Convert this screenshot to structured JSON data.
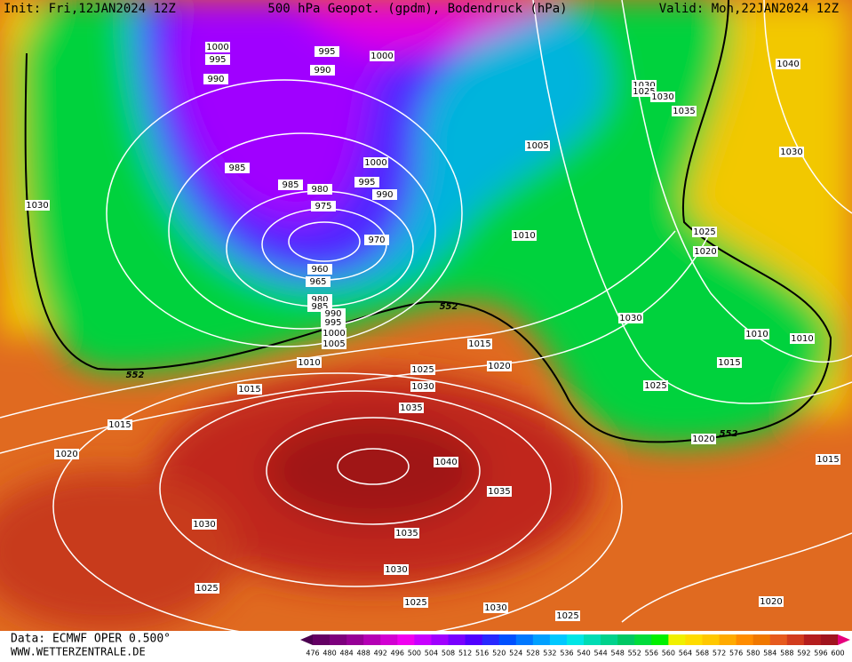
{
  "header": {
    "init": "Init: Fri,12JAN2024 12Z",
    "title": "500 hPa Geopot. (gpdm), Bodendruck (hPa)",
    "valid": "Valid: Mon,22JAN2024 12Z"
  },
  "isobar_labels": [
    1000,
    995,
    990,
    995,
    990,
    1000,
    985,
    985,
    980,
    975,
    970,
    960,
    965,
    980,
    985,
    990,
    995,
    1000,
    1005,
    1000,
    995,
    990,
    1005,
    1010,
    1030,
    1010,
    1015,
    1015,
    1020,
    1015,
    1025,
    1020,
    1030,
    1035,
    1040,
    1035,
    1035,
    1030,
    1030,
    1025,
    1025,
    1030,
    1025,
    1020,
    1015,
    1020,
    1025,
    1015,
    1010,
    1010,
    1030,
    1025,
    1020,
    1030,
    1040,
    1030,
    1025,
    1030,
    1035
  ],
  "height_labels": [
    552,
    552,
    552
  ],
  "footer": {
    "data": "Data: ECMWF OPER 0.500°",
    "site": "WWW.WETTERZENTRALE.DE"
  },
  "colorbar": {
    "labels": [
      476,
      480,
      484,
      488,
      492,
      496,
      500,
      504,
      508,
      512,
      516,
      520,
      524,
      528,
      532,
      536,
      540,
      544,
      548,
      552,
      556,
      560,
      564,
      568,
      572,
      576,
      580,
      584,
      588,
      592,
      596,
      600
    ],
    "colors": [
      "#4b0050",
      "#640064",
      "#7d007d",
      "#960096",
      "#b400b4",
      "#d200d2",
      "#f000f0",
      "#c800ff",
      "#a000ff",
      "#7800ff",
      "#5000ff",
      "#2828ff",
      "#0050ff",
      "#0078ff",
      "#00a0ff",
      "#00c8ff",
      "#00e6e6",
      "#00dcb4",
      "#00d28c",
      "#00c864",
      "#00dc3c",
      "#00f000",
      "#f0f000",
      "#ffdc00",
      "#ffc800",
      "#ffaa00",
      "#ff8c00",
      "#f07800",
      "#e65a1e",
      "#d23c1e",
      "#b41e1e",
      "#a0141e",
      "#e6007d"
    ]
  }
}
